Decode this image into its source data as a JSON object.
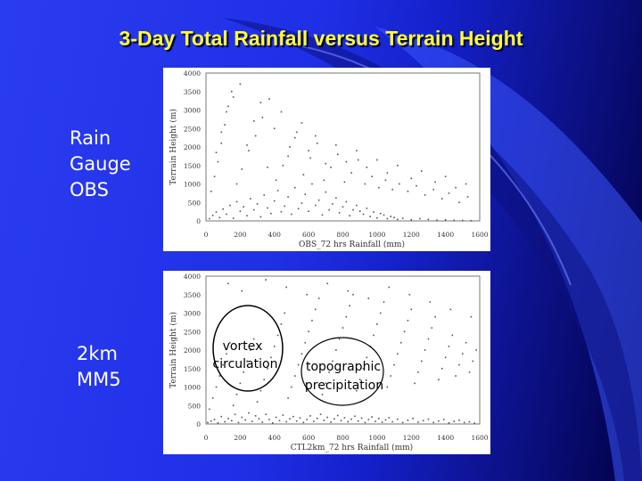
{
  "slide": {
    "title": "3-Day Total Rainfall versus Terrain Height",
    "bg_color": "#1f2fe6",
    "title_color": "#ffff33"
  },
  "labels": {
    "top": "Rain\nGauge\nOBS",
    "bottom": "2km\nMM5"
  },
  "annotations": {
    "vortex": "vortex\ncirculation",
    "topographic": "topographic\nprecipitation"
  },
  "chart_data": [
    {
      "type": "scatter",
      "title": "",
      "xlabel": "OBS_72 hrs Rainfall (mm)",
      "ylabel": "Terrain Height (m)",
      "xlim": [
        0,
        1600
      ],
      "ylim": [
        0,
        4000
      ],
      "xticks": [
        "0",
        "200",
        "400",
        "600",
        "800",
        "1000",
        "1200",
        "1400",
        "1600"
      ],
      "yticks": [
        "0",
        "500",
        "1000",
        "1500",
        "2000",
        "2500",
        "3000",
        "3500",
        "4000"
      ],
      "grid": false,
      "points": [
        [
          20,
          60
        ],
        [
          40,
          150
        ],
        [
          60,
          240
        ],
        [
          80,
          90
        ],
        [
          100,
          320
        ],
        [
          120,
          180
        ],
        [
          140,
          420
        ],
        [
          160,
          70
        ],
        [
          180,
          520
        ],
        [
          200,
          260
        ],
        [
          220,
          380
        ],
        [
          240,
          140
        ],
        [
          260,
          600
        ],
        [
          280,
          300
        ],
        [
          300,
          460
        ],
        [
          320,
          110
        ],
        [
          340,
          700
        ],
        [
          360,
          350
        ],
        [
          380,
          200
        ],
        [
          400,
          540
        ],
        [
          420,
          820
        ],
        [
          440,
          250
        ],
        [
          460,
          400
        ],
        [
          480,
          650
        ],
        [
          500,
          180
        ],
        [
          520,
          900
        ],
        [
          540,
          330
        ],
        [
          560,
          480
        ],
        [
          580,
          720
        ],
        [
          600,
          260
        ],
        [
          620,
          1000
        ],
        [
          640,
          420
        ],
        [
          660,
          560
        ],
        [
          680,
          160
        ],
        [
          700,
          780
        ],
        [
          720,
          300
        ],
        [
          740,
          460
        ],
        [
          760,
          620
        ],
        [
          780,
          220
        ],
        [
          800,
          380
        ],
        [
          820,
          520
        ],
        [
          840,
          140
        ],
        [
          860,
          300
        ],
        [
          880,
          420
        ],
        [
          900,
          260
        ],
        [
          920,
          180
        ],
        [
          940,
          340
        ],
        [
          960,
          120
        ],
        [
          980,
          240
        ],
        [
          1000,
          80
        ],
        [
          1020,
          200
        ],
        [
          1040,
          160
        ],
        [
          1060,
          60
        ],
        [
          1080,
          120
        ],
        [
          1100,
          90
        ],
        [
          1120,
          40
        ],
        [
          1150,
          70
        ],
        [
          1200,
          30
        ],
        [
          1250,
          60
        ],
        [
          1300,
          40
        ],
        [
          1350,
          20
        ],
        [
          1400,
          30
        ],
        [
          1450,
          15
        ],
        [
          1500,
          10
        ],
        [
          1550,
          5
        ],
        [
          30,
          800
        ],
        [
          50,
          1200
        ],
        [
          70,
          1600
        ],
        [
          90,
          2100
        ],
        [
          110,
          2600
        ],
        [
          130,
          3100
        ],
        [
          150,
          3500
        ],
        [
          180,
          1000
        ],
        [
          210,
          1400
        ],
        [
          250,
          1900
        ],
        [
          290,
          2300
        ],
        [
          330,
          2800
        ],
        [
          370,
          3300
        ],
        [
          410,
          1100
        ],
        [
          450,
          1500
        ],
        [
          490,
          2000
        ],
        [
          530,
          2400
        ],
        [
          570,
          1250
        ],
        [
          610,
          1700
        ],
        [
          650,
          2100
        ],
        [
          690,
          1100
        ],
        [
          730,
          1450
        ],
        [
          770,
          1800
        ],
        [
          810,
          1050
        ],
        [
          850,
          1300
        ],
        [
          890,
          1650
        ],
        [
          930,
          1000
        ],
        [
          970,
          1200
        ],
        [
          1010,
          900
        ],
        [
          1050,
          1100
        ],
        [
          1090,
          850
        ],
        [
          1130,
          1000
        ],
        [
          1180,
          800
        ],
        [
          1230,
          950
        ],
        [
          1280,
          700
        ],
        [
          1330,
          850
        ],
        [
          1380,
          600
        ],
        [
          1420,
          750
        ],
        [
          1480,
          500
        ],
        [
          1530,
          650
        ],
        [
          60,
          1850
        ],
        [
          90,
          2400
        ],
        [
          120,
          2950
        ],
        [
          160,
          3350
        ],
        [
          200,
          3700
        ],
        [
          240,
          2050
        ],
        [
          280,
          2700
        ],
        [
          320,
          3200
        ],
        [
          360,
          1450
        ],
        [
          400,
          2500
        ],
        [
          440,
          2950
        ],
        [
          480,
          1750
        ],
        [
          520,
          2250
        ],
        [
          560,
          2650
        ],
        [
          600,
          1900
        ],
        [
          640,
          2300
        ],
        [
          700,
          1550
        ],
        [
          760,
          2050
        ],
        [
          820,
          1600
        ],
        [
          880,
          1900
        ],
        [
          940,
          1450
        ],
        [
          1000,
          1650
        ],
        [
          1060,
          1300
        ],
        [
          1120,
          1500
        ],
        [
          1200,
          1150
        ],
        [
          1260,
          1350
        ],
        [
          1340,
          1050
        ],
        [
          1400,
          1200
        ],
        [
          1460,
          900
        ],
        [
          1520,
          1000
        ]
      ]
    },
    {
      "type": "scatter",
      "title": "",
      "xlabel": "CTL2km_72 hrs Rainfall (mm)",
      "ylabel": "Terrain Height (m)",
      "xlim": [
        0,
        1600
      ],
      "ylim": [
        0,
        4000
      ],
      "xticks": [
        "0",
        "200",
        "400",
        "600",
        "800",
        "1000",
        "1200",
        "1400",
        "1600"
      ],
      "yticks": [
        "0",
        "500",
        "1000",
        "1500",
        "2000",
        "2500",
        "3000",
        "3500",
        "4000"
      ],
      "grid": false,
      "points": [
        [
          10,
          40
        ],
        [
          30,
          80
        ],
        [
          50,
          120
        ],
        [
          70,
          30
        ],
        [
          90,
          200
        ],
        [
          110,
          60
        ],
        [
          130,
          150
        ],
        [
          150,
          90
        ],
        [
          170,
          260
        ],
        [
          190,
          40
        ],
        [
          210,
          180
        ],
        [
          230,
          110
        ],
        [
          250,
          300
        ],
        [
          270,
          70
        ],
        [
          290,
          220
        ],
        [
          310,
          140
        ],
        [
          330,
          50
        ],
        [
          350,
          260
        ],
        [
          370,
          120
        ],
        [
          390,
          30
        ],
        [
          410,
          180
        ],
        [
          430,
          90
        ],
        [
          450,
          240
        ],
        [
          470,
          60
        ],
        [
          490,
          140
        ],
        [
          510,
          200
        ],
        [
          530,
          80
        ],
        [
          550,
          160
        ],
        [
          570,
          40
        ],
        [
          590,
          120
        ],
        [
          610,
          220
        ],
        [
          630,
          70
        ],
        [
          650,
          150
        ],
        [
          670,
          260
        ],
        [
          690,
          100
        ],
        [
          710,
          180
        ],
        [
          730,
          50
        ],
        [
          750,
          140
        ],
        [
          770,
          230
        ],
        [
          790,
          90
        ],
        [
          810,
          170
        ],
        [
          830,
          60
        ],
        [
          850,
          130
        ],
        [
          870,
          210
        ],
        [
          890,
          80
        ],
        [
          910,
          160
        ],
        [
          930,
          40
        ],
        [
          950,
          120
        ],
        [
          970,
          190
        ],
        [
          990,
          70
        ],
        [
          1010,
          150
        ],
        [
          1030,
          50
        ],
        [
          1050,
          110
        ],
        [
          1070,
          170
        ],
        [
          1090,
          60
        ],
        [
          1120,
          130
        ],
        [
          1150,
          40
        ],
        [
          1180,
          100
        ],
        [
          1210,
          150
        ],
        [
          1240,
          50
        ],
        [
          1270,
          90
        ],
        [
          1300,
          130
        ],
        [
          1330,
          40
        ],
        [
          1360,
          80
        ],
        [
          1390,
          120
        ],
        [
          1420,
          30
        ],
        [
          1450,
          70
        ],
        [
          1480,
          100
        ],
        [
          1510,
          40
        ],
        [
          1540,
          60
        ],
        [
          1570,
          20
        ],
        [
          20,
          400
        ],
        [
          40,
          700
        ],
        [
          60,
          1000
        ],
        [
          80,
          1300
        ],
        [
          100,
          1600
        ],
        [
          120,
          1900
        ],
        [
          140,
          2200
        ],
        [
          160,
          500
        ],
        [
          180,
          800
        ],
        [
          200,
          1100
        ],
        [
          220,
          1400
        ],
        [
          240,
          1700
        ],
        [
          260,
          2000
        ],
        [
          280,
          2300
        ],
        [
          300,
          600
        ],
        [
          320,
          900
        ],
        [
          340,
          1200
        ],
        [
          360,
          1500
        ],
        [
          380,
          1800
        ],
        [
          400,
          2100
        ],
        [
          420,
          2400
        ],
        [
          440,
          2700
        ],
        [
          460,
          3000
        ],
        [
          480,
          700
        ],
        [
          500,
          1000
        ],
        [
          520,
          1300
        ],
        [
          540,
          1600
        ],
        [
          560,
          1900
        ],
        [
          580,
          2200
        ],
        [
          600,
          2500
        ],
        [
          620,
          2800
        ],
        [
          640,
          3100
        ],
        [
          660,
          3400
        ],
        [
          680,
          800
        ],
        [
          700,
          1100
        ],
        [
          720,
          1400
        ],
        [
          740,
          1700
        ],
        [
          760,
          2000
        ],
        [
          780,
          2300
        ],
        [
          800,
          2600
        ],
        [
          820,
          2900
        ],
        [
          840,
          3200
        ],
        [
          860,
          3500
        ],
        [
          880,
          900
        ],
        [
          900,
          1200
        ],
        [
          920,
          1500
        ],
        [
          940,
          1800
        ],
        [
          960,
          2100
        ],
        [
          980,
          2400
        ],
        [
          1000,
          2700
        ],
        [
          1020,
          3000
        ],
        [
          1040,
          3300
        ],
        [
          1060,
          1000
        ],
        [
          1080,
          1300
        ],
        [
          1100,
          1600
        ],
        [
          1120,
          1900
        ],
        [
          1140,
          2200
        ],
        [
          1160,
          2500
        ],
        [
          1180,
          2800
        ],
        [
          1200,
          3100
        ],
        [
          1220,
          1100
        ],
        [
          1240,
          1400
        ],
        [
          1260,
          1700
        ],
        [
          1280,
          2000
        ],
        [
          1300,
          2300
        ],
        [
          1320,
          2600
        ],
        [
          1340,
          2900
        ],
        [
          1360,
          1200
        ],
        [
          1380,
          1500
        ],
        [
          1400,
          1800
        ],
        [
          1420,
          2100
        ],
        [
          1440,
          2400
        ],
        [
          1460,
          1300
        ],
        [
          1480,
          1600
        ],
        [
          1500,
          1900
        ],
        [
          1520,
          2200
        ],
        [
          1540,
          1400
        ],
        [
          1560,
          1700
        ],
        [
          1580,
          2000
        ],
        [
          130,
          3800
        ],
        [
          210,
          3600
        ],
        [
          350,
          3900
        ],
        [
          470,
          3700
        ],
        [
          590,
          3500
        ],
        [
          710,
          3800
        ],
        [
          830,
          3600
        ],
        [
          950,
          3400
        ],
        [
          1070,
          3700
        ],
        [
          1190,
          3500
        ],
        [
          1310,
          3300
        ],
        [
          1430,
          3100
        ],
        [
          1550,
          2900
        ]
      ]
    }
  ]
}
